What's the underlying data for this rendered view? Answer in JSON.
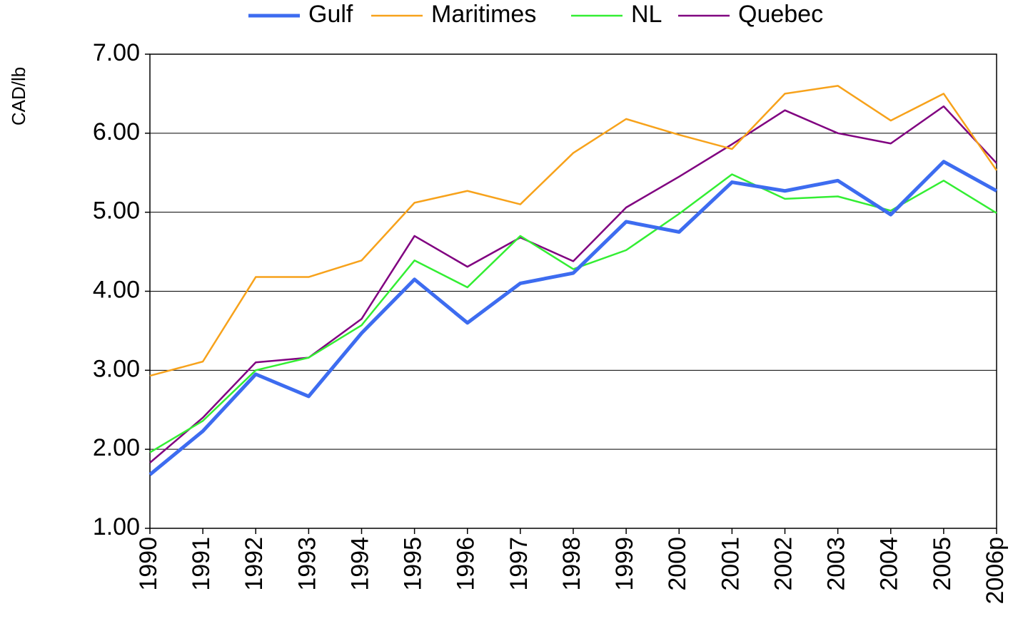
{
  "chart_data": {
    "type": "line",
    "y_label": "CAD/lb",
    "categories": [
      "1990",
      "1991",
      "1992",
      "1993",
      "1994",
      "1995",
      "1996",
      "1997",
      "1998",
      "1999",
      "2000",
      "2001",
      "2002",
      "2003",
      "2004",
      "2005",
      "2006p"
    ],
    "series": [
      {
        "name": "Gulf",
        "color": "#3d6cf0",
        "values": [
          1.68,
          2.23,
          2.95,
          2.67,
          3.47,
          4.15,
          3.6,
          4.1,
          4.23,
          4.88,
          4.75,
          5.38,
          5.27,
          5.4,
          4.97,
          5.64,
          5.27
        ]
      },
      {
        "name": "Maritimes",
        "color": "#f7a21b",
        "values": [
          2.93,
          3.11,
          4.18,
          4.18,
          4.39,
          5.12,
          5.27,
          5.1,
          5.75,
          6.18,
          5.98,
          5.8,
          6.5,
          6.6,
          6.16,
          6.5,
          5.53
        ]
      },
      {
        "name": "NL",
        "color": "#33ee33",
        "values": [
          1.96,
          2.36,
          3.0,
          3.16,
          3.57,
          4.39,
          4.05,
          4.7,
          4.28,
          4.52,
          4.98,
          5.48,
          5.17,
          5.2,
          5.02,
          5.4,
          4.99
        ]
      },
      {
        "name": "Quebec",
        "color": "#800080",
        "values": [
          1.83,
          2.4,
          3.1,
          3.16,
          3.65,
          4.7,
          4.31,
          4.68,
          4.38,
          5.06,
          5.45,
          5.86,
          6.29,
          6.0,
          5.87,
          6.34,
          5.62
        ]
      }
    ],
    "ylim": [
      1,
      7
    ],
    "yticks": [
      {
        "value": 1,
        "label": "1.00"
      },
      {
        "value": 2,
        "label": "2.00"
      },
      {
        "value": 3,
        "label": "3.00"
      },
      {
        "value": 4,
        "label": "4.00"
      },
      {
        "value": 5,
        "label": "5.00"
      },
      {
        "value": 6,
        "label": "6.00"
      },
      {
        "value": 7,
        "label": "7.00"
      }
    ],
    "grid": true,
    "legend": "top"
  }
}
